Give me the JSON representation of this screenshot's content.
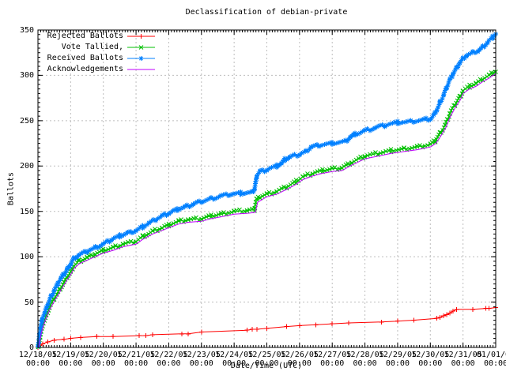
{
  "window": {
    "kind": "gnuplot-rendered-chart-image"
  },
  "chart_data": {
    "type": "line",
    "title": "Declassification of debian-private",
    "xlabel": "Date/Time (UTC)",
    "ylabel": "Ballots",
    "x_unit": "days since 2005-12-18 00:00 UTC",
    "xlim": [
      0,
      14
    ],
    "ylim": [
      0,
      350
    ],
    "grid": true,
    "grid_color": "#bdbdbd",
    "border_color": "#000000",
    "legend_position": "top-left",
    "y_ticks": [
      0,
      50,
      100,
      150,
      200,
      250,
      300,
      350
    ],
    "y_minor_tick_step": 5,
    "x_minor_ticks_per_day": 12,
    "x_tick_time": "00:00",
    "x_tick_dates": [
      "12/18/05",
      "12/19/05",
      "12/20/05",
      "12/21/05",
      "12/22/05",
      "12/23/05",
      "12/24/05",
      "12/25/05",
      "12/26/05",
      "12/27/05",
      "12/28/05",
      "12/29/05",
      "12/30/05",
      "12/31/05",
      "01/01/06"
    ],
    "series": [
      {
        "name": "Rejected Ballots",
        "color": "#ff0000",
        "marker": "plus",
        "dense_markers": false,
        "points": [
          [
            0,
            0
          ],
          [
            0.05,
            2
          ],
          [
            0.15,
            4
          ],
          [
            0.3,
            6
          ],
          [
            0.5,
            8
          ],
          [
            0.8,
            9
          ],
          [
            1.0,
            10
          ],
          [
            1.3,
            11
          ],
          [
            1.8,
            12
          ],
          [
            2.3,
            12
          ],
          [
            3.1,
            13
          ],
          [
            3.3,
            13
          ],
          [
            3.5,
            14
          ],
          [
            4.4,
            15
          ],
          [
            4.6,
            15
          ],
          [
            5.0,
            17
          ],
          [
            6.4,
            19
          ],
          [
            6.55,
            20
          ],
          [
            6.7,
            20
          ],
          [
            7.0,
            21
          ],
          [
            7.6,
            23
          ],
          [
            8.0,
            24
          ],
          [
            8.5,
            25
          ],
          [
            9.0,
            26
          ],
          [
            9.5,
            27
          ],
          [
            10.5,
            28
          ],
          [
            11.0,
            29
          ],
          [
            11.5,
            30
          ],
          [
            12.2,
            32
          ],
          [
            12.3,
            33
          ],
          [
            12.4,
            35
          ],
          [
            12.5,
            36
          ],
          [
            12.6,
            38
          ],
          [
            12.7,
            40
          ],
          [
            12.8,
            42
          ],
          [
            13.3,
            42
          ],
          [
            13.7,
            43
          ],
          [
            13.8,
            43
          ],
          [
            14.0,
            44
          ]
        ]
      },
      {
        "name": "Vote Tallied,",
        "color": "#00c000",
        "marker": "cross",
        "dense_markers": true,
        "points": [
          [
            0,
            0
          ],
          [
            0.03,
            4
          ],
          [
            0.06,
            10
          ],
          [
            0.1,
            18
          ],
          [
            0.15,
            25
          ],
          [
            0.25,
            35
          ],
          [
            0.35,
            44
          ],
          [
            0.5,
            54
          ],
          [
            0.65,
            63
          ],
          [
            0.8,
            72
          ],
          [
            0.9,
            78
          ],
          [
            1.0,
            83
          ],
          [
            1.1,
            90
          ],
          [
            1.25,
            95
          ],
          [
            1.5,
            99
          ],
          [
            1.75,
            103
          ],
          [
            2.0,
            107
          ],
          [
            2.3,
            110
          ],
          [
            2.6,
            114
          ],
          [
            3.0,
            117
          ],
          [
            3.2,
            122
          ],
          [
            3.5,
            128
          ],
          [
            3.8,
            132
          ],
          [
            4.0,
            135
          ],
          [
            4.3,
            139
          ],
          [
            4.6,
            141
          ],
          [
            5.0,
            142
          ],
          [
            5.3,
            145
          ],
          [
            5.6,
            147
          ],
          [
            6.0,
            150
          ],
          [
            6.4,
            151
          ],
          [
            6.62,
            152
          ],
          [
            6.68,
            163
          ],
          [
            6.8,
            166
          ],
          [
            7.0,
            169
          ],
          [
            7.3,
            172
          ],
          [
            7.6,
            177
          ],
          [
            7.9,
            183
          ],
          [
            8.1,
            188
          ],
          [
            8.4,
            192
          ],
          [
            8.7,
            195
          ],
          [
            9.0,
            197
          ],
          [
            9.3,
            198
          ],
          [
            9.6,
            204
          ],
          [
            10.0,
            211
          ],
          [
            10.4,
            214
          ],
          [
            10.8,
            217
          ],
          [
            11.2,
            219
          ],
          [
            11.6,
            221
          ],
          [
            12.0,
            224
          ],
          [
            12.15,
            228
          ],
          [
            12.3,
            236
          ],
          [
            12.45,
            245
          ],
          [
            12.6,
            258
          ],
          [
            12.75,
            268
          ],
          [
            12.9,
            276
          ],
          [
            13.0,
            283
          ],
          [
            13.2,
            288
          ],
          [
            13.4,
            291
          ],
          [
            13.6,
            296
          ],
          [
            13.8,
            300
          ],
          [
            14.0,
            305
          ]
        ]
      },
      {
        "name": "Received Ballots",
        "color": "#0080ff",
        "marker": "star",
        "dense_markers": true,
        "points": [
          [
            0,
            0
          ],
          [
            0.02,
            6
          ],
          [
            0.05,
            14
          ],
          [
            0.08,
            22
          ],
          [
            0.12,
            30
          ],
          [
            0.2,
            38
          ],
          [
            0.3,
            48
          ],
          [
            0.4,
            56
          ],
          [
            0.5,
            63
          ],
          [
            0.6,
            70
          ],
          [
            0.7,
            76
          ],
          [
            0.8,
            81
          ],
          [
            0.9,
            86
          ],
          [
            1.0,
            92
          ],
          [
            1.1,
            98
          ],
          [
            1.25,
            102
          ],
          [
            1.5,
            106
          ],
          [
            1.75,
            110
          ],
          [
            2.0,
            114
          ],
          [
            2.25,
            119
          ],
          [
            2.5,
            123
          ],
          [
            2.75,
            126
          ],
          [
            3.0,
            129
          ],
          [
            3.2,
            133
          ],
          [
            3.4,
            137
          ],
          [
            3.6,
            141
          ],
          [
            3.8,
            145
          ],
          [
            4.0,
            148
          ],
          [
            4.25,
            152
          ],
          [
            4.5,
            155
          ],
          [
            4.75,
            158
          ],
          [
            5.0,
            161
          ],
          [
            5.3,
            164
          ],
          [
            5.6,
            167
          ],
          [
            5.9,
            169
          ],
          [
            6.2,
            170
          ],
          [
            6.55,
            171
          ],
          [
            6.62,
            175
          ],
          [
            6.7,
            190
          ],
          [
            6.8,
            194
          ],
          [
            7.0,
            196
          ],
          [
            7.3,
            200
          ],
          [
            7.45,
            203
          ],
          [
            7.55,
            207
          ],
          [
            7.7,
            210
          ],
          [
            8.0,
            213
          ],
          [
            8.2,
            216
          ],
          [
            8.35,
            221
          ],
          [
            8.6,
            223
          ],
          [
            9.0,
            225
          ],
          [
            9.4,
            227
          ],
          [
            9.55,
            232
          ],
          [
            9.7,
            235
          ],
          [
            10.0,
            239
          ],
          [
            10.3,
            242
          ],
          [
            10.6,
            245
          ],
          [
            11.0,
            248
          ],
          [
            11.4,
            249
          ],
          [
            11.8,
            251
          ],
          [
            12.0,
            252
          ],
          [
            12.1,
            256
          ],
          [
            12.2,
            262
          ],
          [
            12.3,
            270
          ],
          [
            12.4,
            278
          ],
          [
            12.5,
            287
          ],
          [
            12.6,
            295
          ],
          [
            12.7,
            302
          ],
          [
            12.8,
            308
          ],
          [
            12.9,
            314
          ],
          [
            13.0,
            318
          ],
          [
            13.1,
            322
          ],
          [
            13.3,
            325
          ],
          [
            13.45,
            327
          ],
          [
            13.6,
            331
          ],
          [
            13.75,
            336
          ],
          [
            13.9,
            342
          ],
          [
            14.0,
            346
          ]
        ]
      },
      {
        "name": "Acknowledgements",
        "color": "#c000ff",
        "marker": "none",
        "dense_markers": false,
        "points": [
          [
            0,
            0
          ],
          [
            0.03,
            2
          ],
          [
            0.06,
            7
          ],
          [
            0.1,
            15
          ],
          [
            0.15,
            22
          ],
          [
            0.25,
            32
          ],
          [
            0.35,
            41
          ],
          [
            0.5,
            51
          ],
          [
            0.65,
            60
          ],
          [
            0.8,
            69
          ],
          [
            0.9,
            75
          ],
          [
            1.0,
            80
          ],
          [
            1.1,
            87
          ],
          [
            1.25,
            92
          ],
          [
            1.5,
            96
          ],
          [
            1.75,
            100
          ],
          [
            2.0,
            104
          ],
          [
            2.3,
            107
          ],
          [
            2.6,
            111
          ],
          [
            3.0,
            114
          ],
          [
            3.2,
            119
          ],
          [
            3.5,
            125
          ],
          [
            3.8,
            129
          ],
          [
            4.0,
            132
          ],
          [
            4.3,
            136
          ],
          [
            4.6,
            138
          ],
          [
            5.0,
            139
          ],
          [
            5.3,
            142
          ],
          [
            5.6,
            144
          ],
          [
            6.0,
            147
          ],
          [
            6.45,
            148
          ],
          [
            6.65,
            149
          ],
          [
            6.72,
            160
          ],
          [
            6.85,
            163
          ],
          [
            7.0,
            166
          ],
          [
            7.3,
            169
          ],
          [
            7.6,
            174
          ],
          [
            7.9,
            180
          ],
          [
            8.1,
            185
          ],
          [
            8.4,
            189
          ],
          [
            8.7,
            192
          ],
          [
            9.0,
            194
          ],
          [
            9.3,
            195
          ],
          [
            9.6,
            201
          ],
          [
            10.0,
            208
          ],
          [
            10.4,
            211
          ],
          [
            10.8,
            214
          ],
          [
            11.2,
            216
          ],
          [
            11.6,
            218
          ],
          [
            12.0,
            221
          ],
          [
            12.17,
            225
          ],
          [
            12.32,
            233
          ],
          [
            12.47,
            242
          ],
          [
            12.62,
            255
          ],
          [
            12.77,
            265
          ],
          [
            12.92,
            273
          ],
          [
            13.0,
            280
          ],
          [
            13.2,
            285
          ],
          [
            13.4,
            288
          ],
          [
            13.6,
            293
          ],
          [
            13.8,
            297
          ],
          [
            14.0,
            302
          ]
        ]
      }
    ]
  }
}
